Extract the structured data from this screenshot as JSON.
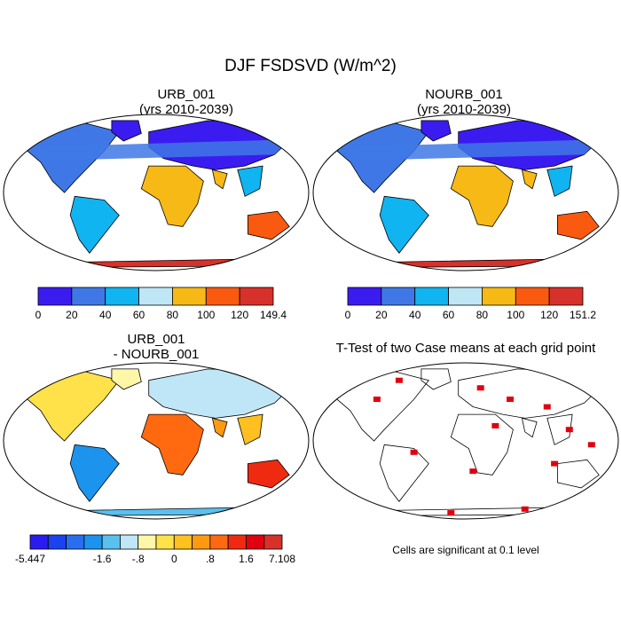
{
  "title": "DJF FSDSVD (W/m^2)",
  "panels": {
    "tl": {
      "line1": "URB_001",
      "line2": "(yrs 2010-2039)"
    },
    "tr": {
      "line1": "NOURB_001",
      "line2": "(yrs 2010-2039)"
    },
    "bl": {
      "line1": "URB_001",
      "line2": "- NOURB_001"
    },
    "br": {
      "line1": "T-Test of two Case means at each grid point"
    }
  },
  "colorbars": {
    "tl": {
      "labels": [
        "0",
        "20",
        "40",
        "60",
        "80",
        "100",
        "120",
        "149.4"
      ],
      "colors": [
        "#3b1cf0",
        "#3f78e6",
        "#10b4f0",
        "#bfe6f5",
        "#f7b915",
        "#f95a10",
        "#d8302a"
      ]
    },
    "tr": {
      "labels": [
        "0",
        "20",
        "40",
        "60",
        "80",
        "100",
        "120",
        "151.2"
      ],
      "colors": [
        "#3b1cf0",
        "#3f78e6",
        "#10b4f0",
        "#bfe6f5",
        "#f7b915",
        "#f95a10",
        "#d8302a"
      ]
    },
    "bl": {
      "labels": [
        "-5.447",
        "-1.6",
        "-.8",
        "0",
        ".8",
        "1.6",
        "7.108"
      ],
      "colors": [
        "#2a1cf0",
        "#1a42f0",
        "#2a6ef0",
        "#1c94ee",
        "#5ac0f0",
        "#bfe6f7",
        "#fff7a8",
        "#ffe24a",
        "#ffc020",
        "#ff9a10",
        "#ff6a10",
        "#f02a10",
        "#e00010",
        "#d8302a"
      ]
    }
  },
  "note": "Cells are significant at 0.1 level",
  "colors": {
    "ocean": "#ffffff",
    "border": "#000000",
    "significant": "#e00010"
  }
}
